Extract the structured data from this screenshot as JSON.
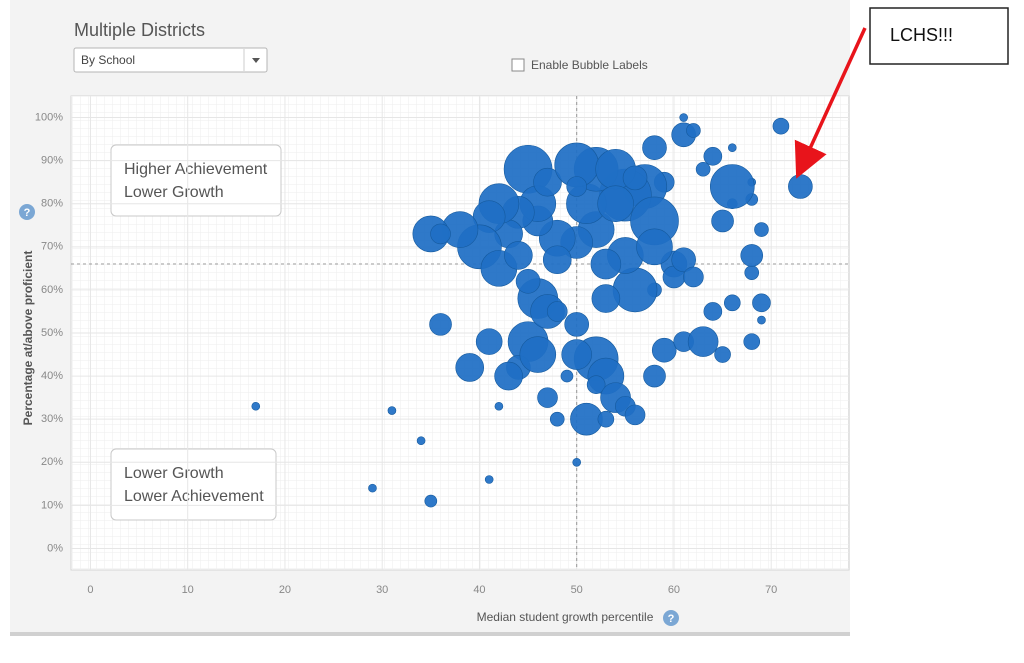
{
  "chart_data": {
    "type": "bubble",
    "title": "Multiple Districts",
    "dropdown": "By School",
    "checkbox_label": "Enable Bubble Labels",
    "x_label": "Median student growth percentile",
    "y_label": "Percentage at/above proficient",
    "quadrants": [
      {
        "lines": [
          "Higher Achievement",
          "Lower Growth"
        ]
      },
      {
        "lines": [
          "Lower Growth",
          "Lower Achievement"
        ]
      }
    ],
    "annotation": "LCHS!!!",
    "color": "#1f6fc5",
    "grid": true,
    "reference_lines": {
      "x": 50,
      "y": 66
    },
    "xlim": [
      -2,
      78
    ],
    "ylim": [
      -5,
      105
    ],
    "xticks": [
      0,
      10,
      20,
      30,
      40,
      50,
      60,
      70
    ],
    "yticks": [
      {
        "value": 0,
        "label": "0%"
      },
      {
        "value": 10,
        "label": "10%"
      },
      {
        "value": 20,
        "label": "20%"
      },
      {
        "value": 30,
        "label": "30%"
      },
      {
        "value": 40,
        "label": "40%"
      },
      {
        "value": 50,
        "label": "50%"
      },
      {
        "value": 60,
        "label": "60%"
      },
      {
        "value": 70,
        "label": "70%"
      },
      {
        "value": 80,
        "label": "80%"
      },
      {
        "value": 90,
        "label": "90%"
      },
      {
        "value": 100,
        "label": "100%"
      }
    ],
    "x": [
      17,
      29,
      31,
      34,
      35,
      36,
      41,
      42,
      39,
      41,
      45,
      44,
      46,
      43,
      47,
      48,
      49,
      50,
      51,
      52,
      50,
      53,
      52,
      54,
      55,
      56,
      53,
      58,
      59,
      61,
      63,
      65,
      64,
      66,
      69,
      69,
      68,
      68,
      68,
      69,
      68,
      68,
      66,
      65,
      66,
      66,
      64,
      63,
      61,
      62,
      61,
      58,
      59,
      57,
      55,
      58,
      60,
      60,
      58,
      56,
      55,
      53,
      53,
      52,
      51,
      52,
      50,
      48,
      48,
      46,
      46,
      47,
      48,
      50,
      45,
      46,
      44,
      43,
      42,
      41,
      40,
      42,
      44,
      38,
      35,
      36,
      45,
      47,
      50,
      54,
      56,
      54,
      50,
      58,
      61,
      62,
      71,
      73
    ],
    "values": [
      33,
      14,
      32,
      25,
      11,
      52,
      16,
      33,
      42,
      48,
      48,
      42,
      45,
      40,
      35,
      30,
      40,
      20,
      30,
      44,
      45,
      40,
      38,
      35,
      33,
      31,
      30,
      40,
      46,
      48,
      48,
      45,
      55,
      57,
      57,
      53,
      48,
      64,
      68,
      74,
      81,
      85,
      80,
      76,
      84,
      93,
      91,
      88,
      96,
      97,
      100,
      93,
      85,
      84,
      82,
      76,
      66,
      63,
      60,
      60,
      68,
      66,
      58,
      74,
      80,
      88,
      71,
      72,
      67,
      76,
      58,
      55,
      55,
      52,
      88,
      80,
      78,
      73,
      80,
      77,
      70,
      65,
      68,
      74,
      73,
      73,
      62,
      85,
      89,
      88,
      86,
      80,
      84,
      70,
      67,
      63,
      98,
      84
    ],
    "sizes": [
      4,
      4,
      4,
      4,
      6,
      11,
      4,
      4,
      14,
      13,
      20,
      12,
      18,
      14,
      10,
      7,
      6,
      4,
      16,
      22,
      15,
      18,
      9,
      15,
      10,
      10,
      8,
      11,
      12,
      10,
      15,
      8,
      9,
      8,
      9,
      4,
      8,
      7,
      11,
      7,
      6,
      4,
      5,
      11,
      22,
      4,
      9,
      7,
      12,
      7,
      4,
      12,
      10,
      22,
      26,
      24,
      13,
      11,
      7,
      22,
      18,
      15,
      14,
      18,
      20,
      22,
      16,
      18,
      14,
      15,
      20,
      17,
      10,
      12,
      24,
      18,
      16,
      14,
      20,
      16,
      22,
      18,
      14,
      18,
      18,
      10,
      12,
      14,
      22,
      20,
      12,
      18,
      10,
      18,
      12,
      10,
      8,
      12
    ]
  }
}
